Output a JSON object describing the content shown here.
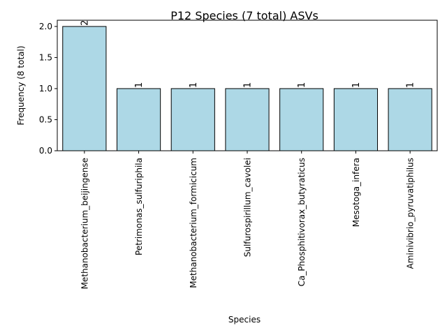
{
  "chart_data": {
    "type": "bar",
    "title": "P12 Species (7 total) ASVs",
    "xlabel": "Species",
    "ylabel": "Frequency (8 total)",
    "categories": [
      "Methanobacterium_beijingense",
      "Petrimonas_sulfuriphila",
      "Methanobacterium_formicicum",
      "Sulfurospirillum_cavolei",
      "Ca_Phosphitivorax_butyraticus",
      "Mesotoga_infera",
      "Aminivibrio_pyruvatiphilus"
    ],
    "values": [
      2,
      1,
      1,
      1,
      1,
      1,
      1
    ],
    "data_labels": [
      "2",
      "1",
      "1",
      "1",
      "1",
      "1",
      "1"
    ],
    "ylim": [
      0,
      2.1
    ],
    "yticks": [
      0.0,
      0.5,
      1.0,
      1.5,
      2.0
    ],
    "ytick_labels": [
      "0.0",
      "0.5",
      "1.0",
      "1.5",
      "2.0"
    ],
    "grid": false,
    "bar_color": "#add8e6",
    "edge_color": "#000000"
  }
}
